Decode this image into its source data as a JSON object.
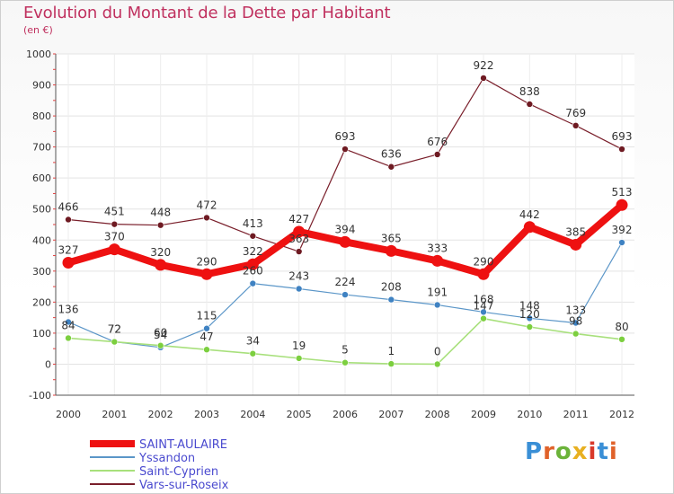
{
  "title": "Evolution du Montant de la Dette par Habitant",
  "subtitle": "(en €)",
  "logo": {
    "text": "Proxiti",
    "letter_colors": [
      "#3a8fd6",
      "#e0622a",
      "#6bb33a",
      "#e8b021",
      "#d93a2b",
      "#3a8fd6",
      "#e0622a"
    ]
  },
  "chart_data": {
    "type": "line",
    "categories": [
      "2000",
      "2001",
      "2002",
      "2003",
      "2004",
      "2005",
      "2006",
      "2007",
      "2008",
      "2009",
      "2010",
      "2011",
      "2012"
    ],
    "ylim": [
      -100,
      1000
    ],
    "yticks": [
      -100,
      0,
      100,
      200,
      300,
      400,
      500,
      600,
      700,
      800,
      900,
      1000
    ],
    "grid": true,
    "legend_position": "bottom-left",
    "series": [
      {
        "name": "Vars-sur-Roseix",
        "color": "#7a1f2b",
        "marker": "#6e1a22",
        "width": 1.2,
        "values": [
          466,
          451,
          448,
          472,
          413,
          363,
          693,
          636,
          676,
          922,
          838,
          769,
          693
        ]
      },
      {
        "name": "Yssandon",
        "color": "#5b96c8",
        "marker": "#3f82c2",
        "width": 1.2,
        "values": [
          136,
          72,
          54,
          115,
          260,
          243,
          224,
          208,
          191,
          168,
          148,
          133,
          392
        ]
      },
      {
        "name": "Saint-Cyprien",
        "color": "#a8e07c",
        "marker": "#7ccf3f",
        "width": 1.6,
        "values": [
          84,
          72,
          60,
          47,
          34,
          19,
          5,
          1,
          0,
          147,
          120,
          98,
          80
        ]
      },
      {
        "name": "SAINT-AULAIRE",
        "color": "#ee1111",
        "marker": "#ee1111",
        "width": 8,
        "values": [
          327,
          370,
          320,
          290,
          322,
          427,
          394,
          365,
          333,
          290,
          442,
          385,
          513
        ]
      }
    ],
    "legend_order": [
      "SAINT-AULAIRE",
      "Yssandon",
      "Saint-Cyprien",
      "Vars-sur-Roseix"
    ]
  }
}
